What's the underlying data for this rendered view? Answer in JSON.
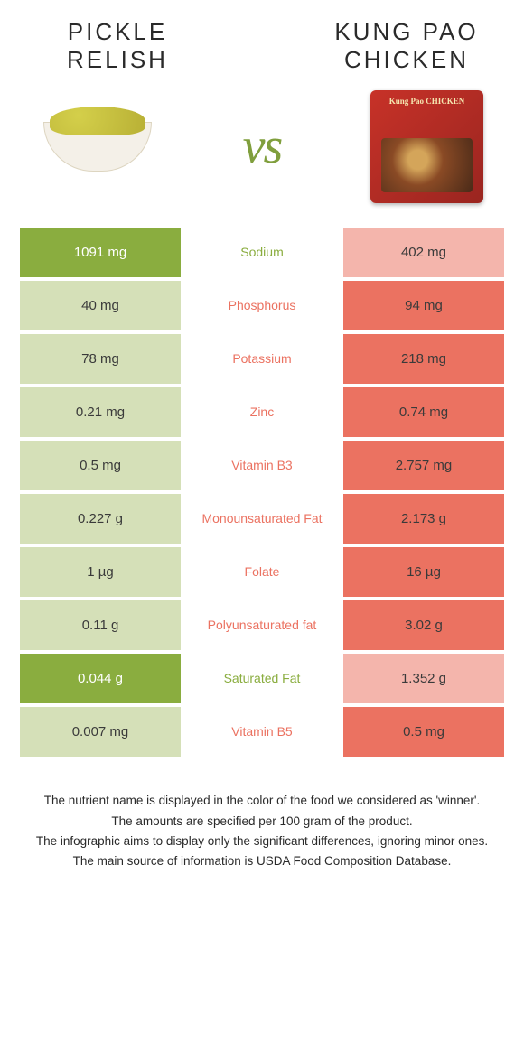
{
  "food_left": {
    "title": "Pickle relish"
  },
  "food_right": {
    "title": "Kung Pao chicken"
  },
  "vs_label": "vs",
  "package_text": "Kung Pao CHICKEN",
  "colors": {
    "left_winner_bg": "#8aad3f",
    "left_loser_bg": "#d5e0b8",
    "right_winner_bg": "#eb7261",
    "right_loser_bg": "#f4b5ac",
    "left_text": "#8aad3f",
    "right_text": "#eb7261"
  },
  "rows": [
    {
      "left": "1091 mg",
      "nutrient": "Sodium",
      "right": "402 mg",
      "winner": "left"
    },
    {
      "left": "40 mg",
      "nutrient": "Phosphorus",
      "right": "94 mg",
      "winner": "right"
    },
    {
      "left": "78 mg",
      "nutrient": "Potassium",
      "right": "218 mg",
      "winner": "right"
    },
    {
      "left": "0.21 mg",
      "nutrient": "Zinc",
      "right": "0.74 mg",
      "winner": "right"
    },
    {
      "left": "0.5 mg",
      "nutrient": "Vitamin B3",
      "right": "2.757 mg",
      "winner": "right"
    },
    {
      "left": "0.227 g",
      "nutrient": "Monounsaturated Fat",
      "right": "2.173 g",
      "winner": "right"
    },
    {
      "left": "1 µg",
      "nutrient": "Folate",
      "right": "16 µg",
      "winner": "right"
    },
    {
      "left": "0.11 g",
      "nutrient": "Polyunsaturated fat",
      "right": "3.02 g",
      "winner": "right"
    },
    {
      "left": "0.044 g",
      "nutrient": "Saturated Fat",
      "right": "1.352 g",
      "winner": "left"
    },
    {
      "left": "0.007 mg",
      "nutrient": "Vitamin B5",
      "right": "0.5 mg",
      "winner": "right"
    }
  ],
  "footnotes": [
    "The nutrient name is displayed in the color of the food we considered as 'winner'.",
    "The amounts are specified per 100 gram of the product.",
    "The infographic aims to display only the significant differences, ignoring minor ones.",
    "The main source of information is USDA Food Composition Database."
  ]
}
